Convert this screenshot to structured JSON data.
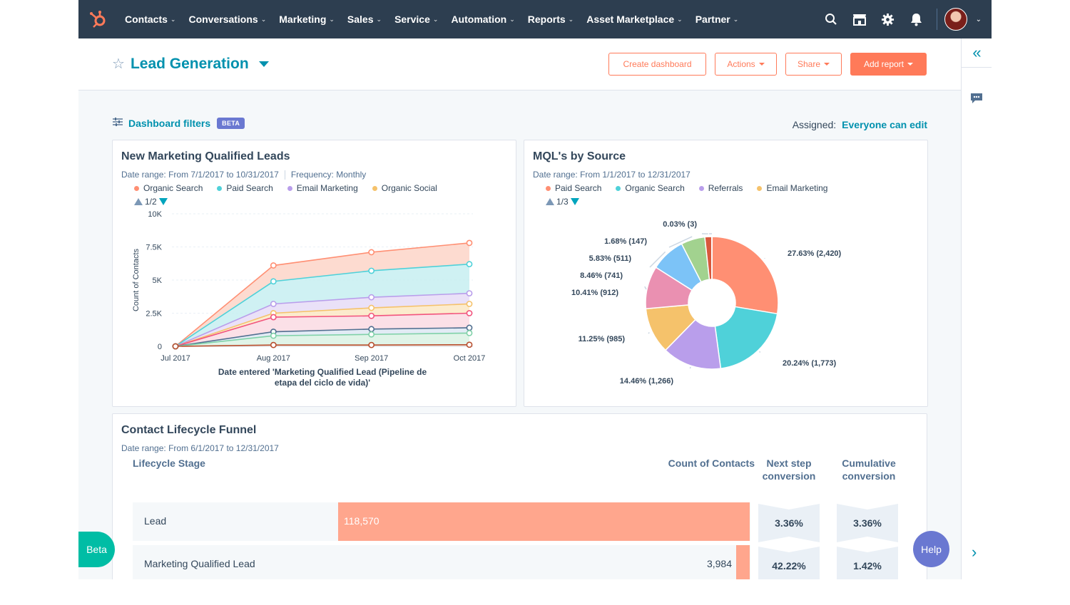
{
  "nav": {
    "items": [
      {
        "label": "Contacts"
      },
      {
        "label": "Conversations"
      },
      {
        "label": "Marketing"
      },
      {
        "label": "Sales"
      },
      {
        "label": "Service"
      },
      {
        "label": "Automation"
      },
      {
        "label": "Reports"
      },
      {
        "label": "Asset Marketplace"
      },
      {
        "label": "Partner"
      }
    ],
    "icons": [
      "hubspot-logo-icon",
      "search-icon",
      "marketplace-icon",
      "gear-icon",
      "bell-icon",
      "avatar"
    ]
  },
  "header": {
    "title": "Lead Generation",
    "buttons": {
      "create_dashboard": "Create dashboard",
      "actions": "Actions",
      "share": "Share",
      "add_report": "Add report"
    }
  },
  "filters": {
    "label": "Dashboard filters",
    "badge": "BETA",
    "assigned_label": "Assigned:",
    "assigned_value": "Everyone can edit"
  },
  "leads_card": {
    "title": "New Marketing Qualified Leads",
    "date_range_label": "Date range:",
    "date_range": "From 7/1/2017 to 10/31/2017",
    "frequency_label": "Frequency:",
    "frequency": "Monthly",
    "pager": "1/2"
  },
  "source_card": {
    "title": "MQL's by Source",
    "date_range_label": "Date range:",
    "date_range": "From 1/1/2017 to 12/31/2017",
    "pager": "1/3"
  },
  "chart_data": [
    {
      "type": "area",
      "title": "New Marketing Qualified Leads",
      "xlabel": "Date entered 'Marketing Qualified Lead (Pipeline de etapa del ciclo de vida)'",
      "ylabel": "Count of Contacts",
      "ylim": [
        0,
        10000
      ],
      "yticks": [
        {
          "v": 0,
          "label": "0"
        },
        {
          "v": 2500,
          "label": "2.5K"
        },
        {
          "v": 5000,
          "label": "5K"
        },
        {
          "v": 7500,
          "label": "7.5K"
        },
        {
          "v": 10000,
          "label": "10K"
        }
      ],
      "categories": [
        "Jul 2017",
        "Aug 2017",
        "Sep 2017",
        "Oct 2017"
      ],
      "legend": [
        {
          "name": "Organic Search",
          "color": "#ff8f73"
        },
        {
          "name": "Paid Search",
          "color": "#4fd1d9"
        },
        {
          "name": "Email Marketing",
          "color": "#b99eeb"
        },
        {
          "name": "Organic Social",
          "color": "#f5c26b"
        }
      ],
      "series": [
        {
          "name": "Organic Search",
          "color": "#ff8f73",
          "fill": "#fdd5c8",
          "values": [
            0,
            6100,
            7100,
            7800
          ]
        },
        {
          "name": "Paid Search",
          "color": "#4fd1d9",
          "fill": "#c7eef1",
          "values": [
            0,
            4900,
            5700,
            6200
          ]
        },
        {
          "color": "#b99eeb",
          "fill": "#e6dcf7",
          "values": [
            0,
            3200,
            3700,
            4000
          ]
        },
        {
          "color": "#f5c26b",
          "fill": "#fbe7c4",
          "values": [
            0,
            2500,
            2900,
            3200
          ]
        },
        {
          "color": "#f2547d",
          "fill": "#fadae3",
          "values": [
            0,
            2200,
            2300,
            2500
          ]
        },
        {
          "color": "#516f90",
          "fill": "#dde7f3",
          "values": [
            0,
            1100,
            1300,
            1400
          ]
        },
        {
          "color": "#7fd1a8",
          "fill": "#daf2e4",
          "values": [
            0,
            800,
            900,
            1000
          ]
        },
        {
          "color": "#b8502f",
          "fill": "#efe2da",
          "values": [
            0,
            100,
            100,
            120
          ]
        }
      ]
    },
    {
      "type": "pie",
      "title": "MQL's by Source",
      "legend": [
        {
          "name": "Paid Search",
          "color": "#ff8f73"
        },
        {
          "name": "Organic Search",
          "color": "#4fd1d9"
        },
        {
          "name": "Referrals",
          "color": "#b99eeb"
        },
        {
          "name": "Email Marketing",
          "color": "#f5c26b"
        }
      ],
      "slices": [
        {
          "value": 27.63,
          "label": "27.63% (2,420)",
          "color": "#ff8f73"
        },
        {
          "value": 20.24,
          "label": "20.24% (1,773)",
          "color": "#4fd1d9"
        },
        {
          "value": 14.46,
          "label": "14.46% (1,266)",
          "color": "#b99eeb"
        },
        {
          "value": 11.25,
          "label": "11.25% (985)",
          "color": "#f5c26b"
        },
        {
          "value": 10.41,
          "label": "10.41% (912)",
          "color": "#ea90b1"
        },
        {
          "value": 8.46,
          "label": "8.46% (741)",
          "color": "#7cc3f7"
        },
        {
          "value": 5.83,
          "label": "5.83% (511)",
          "color": "#a2d28f"
        },
        {
          "value": 1.68,
          "label": "1.68% (147)",
          "color": "#d8573c"
        },
        {
          "value": 0.03,
          "label": "0.03% (3)",
          "color": "#6a78d1"
        }
      ]
    }
  ],
  "funnel": {
    "title": "Contact Lifecycle Funnel",
    "date_range_label": "Date range:",
    "date_range": "From 6/1/2017 to 12/31/2017",
    "col_stage": "Lifecycle Stage",
    "col_count": "Count of Contacts",
    "col_next": "Next step conversion",
    "col_cum": "Cumulative conversion",
    "rows": [
      {
        "stage": "Lead",
        "count": "118,570",
        "count_value": 118570,
        "next": "3.36%",
        "cumulative": "3.36%"
      },
      {
        "stage": "Marketing Qualified Lead",
        "count": "3,984",
        "count_value": 3984,
        "next": "42.22%",
        "cumulative": "1.42%"
      }
    ]
  },
  "floating": {
    "beta": "Beta",
    "help": "Help"
  }
}
